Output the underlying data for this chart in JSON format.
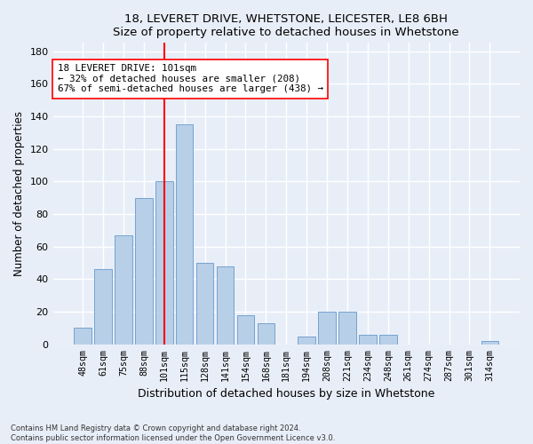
{
  "title1": "18, LEVERET DRIVE, WHETSTONE, LEICESTER, LE8 6BH",
  "title2": "Size of property relative to detached houses in Whetstone",
  "xlabel": "Distribution of detached houses by size in Whetstone",
  "ylabel": "Number of detached properties",
  "categories": [
    "48sqm",
    "61sqm",
    "75sqm",
    "88sqm",
    "101sqm",
    "115sqm",
    "128sqm",
    "141sqm",
    "154sqm",
    "168sqm",
    "181sqm",
    "194sqm",
    "208sqm",
    "221sqm",
    "234sqm",
    "248sqm",
    "261sqm",
    "274sqm",
    "287sqm",
    "301sqm",
    "314sqm"
  ],
  "values": [
    10,
    46,
    67,
    90,
    100,
    135,
    50,
    48,
    18,
    13,
    0,
    5,
    20,
    20,
    6,
    6,
    0,
    0,
    0,
    0,
    2
  ],
  "bar_color": "#b8cfe8",
  "bar_edge_color": "#6699cc",
  "vline_x_index": 4,
  "vline_color": "red",
  "annotation_text": "18 LEVERET DRIVE: 101sqm\n← 32% of detached houses are smaller (208)\n67% of semi-detached houses are larger (438) →",
  "annotation_box_color": "white",
  "annotation_box_edge_color": "red",
  "ylim": [
    0,
    185
  ],
  "yticks": [
    0,
    20,
    40,
    60,
    80,
    100,
    120,
    140,
    160,
    180
  ],
  "footer1": "Contains HM Land Registry data © Crown copyright and database right 2024.",
  "footer2": "Contains public sector information licensed under the Open Government Licence v3.0.",
  "background_color": "#e8eef8",
  "grid_color": "white"
}
